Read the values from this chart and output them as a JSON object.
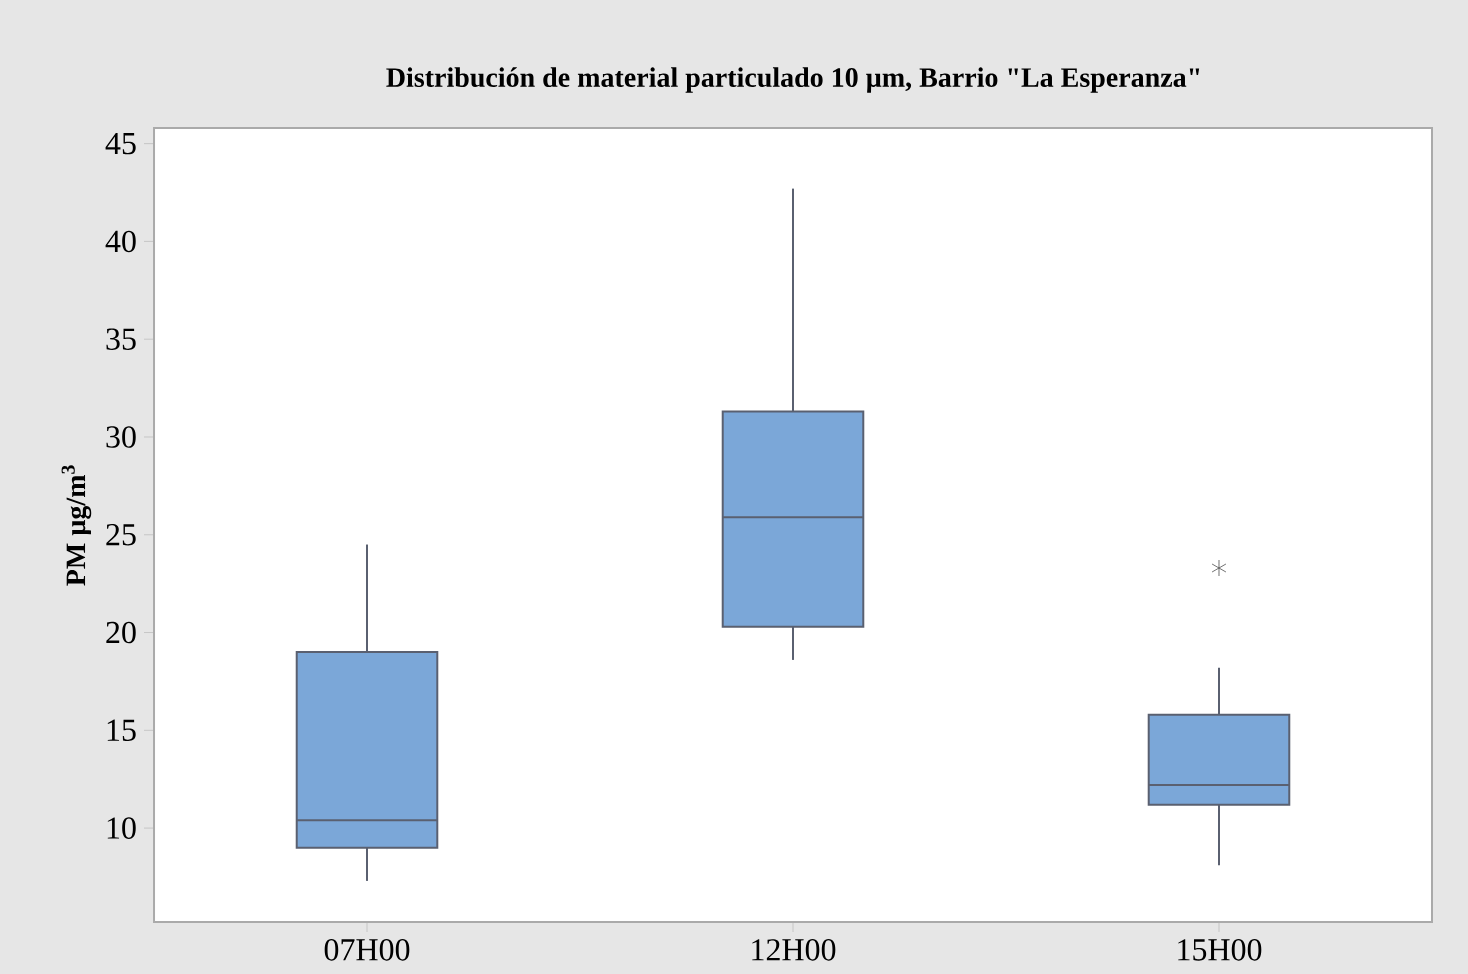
{
  "chart_data": {
    "type": "box",
    "title": "Distribución de material particulado 10 µm, Barrio \"La Esperanza\"",
    "ylabel": "PM µg/m$^{3}$",
    "categories": [
      "07H00",
      "12H00",
      "15H00"
    ],
    "color": "#7ba7d8",
    "ylim": [
      5.2,
      45.8
    ],
    "yticks": [
      10,
      15,
      20,
      25,
      30,
      35,
      40,
      45
    ],
    "grid": false,
    "boxes": [
      {
        "low": 7.3,
        "q1": 9.0,
        "median": 10.4,
        "q3": 19.0,
        "high": 24.5
      },
      {
        "low": 18.6,
        "q1": 20.3,
        "median": 25.9,
        "q3": 31.3,
        "high": 42.7
      },
      {
        "low": 8.1,
        "q1": 11.2,
        "median": 12.2,
        "q3": 15.8,
        "high": 18.2,
        "outliers": [
          23.3
        ]
      }
    ]
  }
}
